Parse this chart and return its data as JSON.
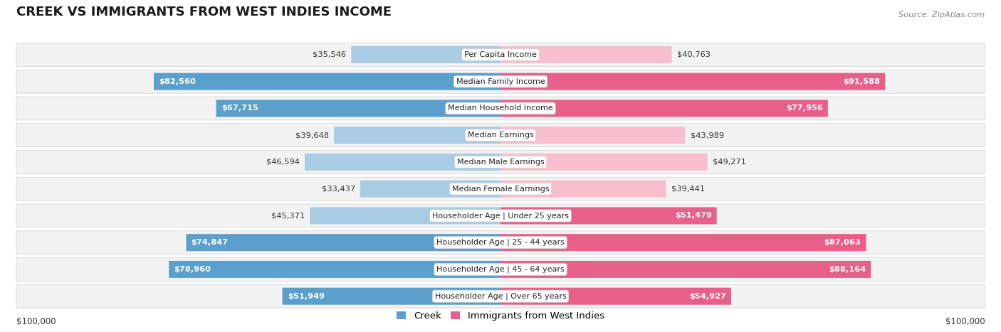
{
  "title": "CREEK VS IMMIGRANTS FROM WEST INDIES INCOME",
  "source": "Source: ZipAtlas.com",
  "categories": [
    "Per Capita Income",
    "Median Family Income",
    "Median Household Income",
    "Median Earnings",
    "Median Male Earnings",
    "Median Female Earnings",
    "Householder Age | Under 25 years",
    "Householder Age | 25 - 44 years",
    "Householder Age | 45 - 64 years",
    "Householder Age | Over 65 years"
  ],
  "creek_values": [
    35546,
    82560,
    67715,
    39648,
    46594,
    33437,
    45371,
    74847,
    78960,
    51949
  ],
  "west_indies_values": [
    40763,
    91588,
    77956,
    43989,
    49271,
    39441,
    51479,
    87063,
    88164,
    54927
  ],
  "creek_labels": [
    "$35,546",
    "$82,560",
    "$67,715",
    "$39,648",
    "$46,594",
    "$33,437",
    "$45,371",
    "$74,847",
    "$78,960",
    "$51,949"
  ],
  "west_indies_labels": [
    "$40,763",
    "$91,588",
    "$77,956",
    "$43,989",
    "$49,271",
    "$39,441",
    "$51,479",
    "$87,063",
    "$88,164",
    "$54,927"
  ],
  "creek_color_light": "#a8cce4",
  "creek_color_dark": "#5b9fcc",
  "west_indies_color_light": "#f7bfcd",
  "west_indies_color_dark": "#e8608a",
  "creek_threshold": 50000,
  "wi_threshold": 50000,
  "max_value": 100000,
  "background_color": "#ffffff",
  "row_bg": "#f2f2f2",
  "row_border": "#cccccc",
  "label_fontsize": 9,
  "title_fontsize": 13,
  "legend_creek": "Creek",
  "legend_wi": "Immigrants from West Indies",
  "xlabel_left": "$100,000",
  "xlabel_right": "$100,000"
}
